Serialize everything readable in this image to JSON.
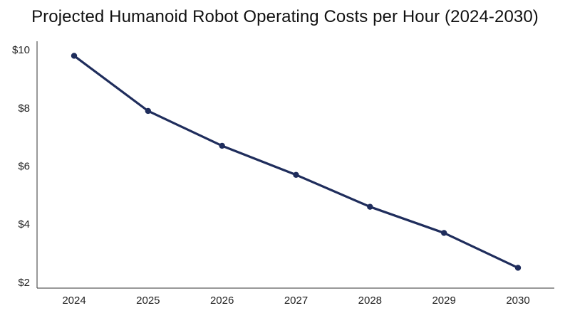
{
  "chart_data": {
    "type": "line",
    "title": "Projected Humanoid Robot Operating Costs per Hour (2024-2030)",
    "xlabel": "",
    "ylabel": "",
    "categories": [
      "2024",
      "2025",
      "2026",
      "2027",
      "2028",
      "2029",
      "2030"
    ],
    "series": [
      {
        "values": [
          9.8,
          7.9,
          6.7,
          5.7,
          4.6,
          3.7,
          2.5
        ]
      }
    ],
    "ylim": [
      1.8,
      10.3
    ],
    "yticks": [
      2,
      4,
      6,
      8,
      10
    ],
    "ytick_labels": [
      "$2",
      "$4",
      "$6",
      "$8",
      "$10"
    ],
    "grid": false,
    "legend": "none",
    "colors": {
      "line": "#1f2d5c",
      "marker": "#1f2d5c",
      "axis": "#333333"
    }
  }
}
